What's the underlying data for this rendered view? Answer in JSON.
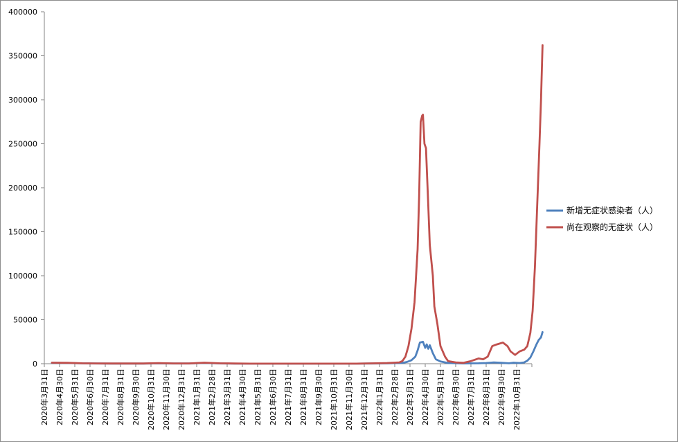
{
  "chart_data": {
    "type": "line",
    "title": "",
    "xlabel": "",
    "ylabel": "",
    "ylim": [
      0,
      400000
    ],
    "y_ticks": [
      0,
      50000,
      100000,
      150000,
      200000,
      250000,
      300000,
      350000,
      400000
    ],
    "x_tick_labels": [
      "2020年3月31日",
      "2020年4月30日",
      "2020年5月31日",
      "2020年6月30日",
      "2020年7月31日",
      "2020年8月31日",
      "2020年9月30日",
      "2020年10月31日",
      "2020年11月30日",
      "2020年12月31日",
      "2021年1月31日",
      "2021年2月28日",
      "2021年3月31日",
      "2021年4月30日",
      "2021年5月31日",
      "2021年6月30日",
      "2021年7月31日",
      "2021年8月31日",
      "2021年9月30日",
      "2021年10月31日",
      "2021年11月30日",
      "2021年12月31日",
      "2022年1月31日",
      "2022年2月28日",
      "2022年3月31日",
      "2022年4月30日",
      "2022年5月31日",
      "2022年6月30日",
      "2022年7月31日",
      "2022年8月31日",
      "2022年9月30日",
      "2022年10月31日"
    ],
    "legend_position": "right",
    "grid": false,
    "series": [
      {
        "name": "新增无症状感染者（人）",
        "color": "#4f81bd",
        "points": [
          [
            0,
            1000
          ],
          [
            1,
            800
          ],
          [
            2,
            400
          ],
          [
            3,
            200
          ],
          [
            4,
            150
          ],
          [
            5,
            150
          ],
          [
            6,
            150
          ],
          [
            7,
            400
          ],
          [
            8,
            200
          ],
          [
            9,
            200
          ],
          [
            10,
            900
          ],
          [
            11,
            300
          ],
          [
            12,
            100
          ],
          [
            13,
            50
          ],
          [
            14,
            50
          ],
          [
            15,
            50
          ],
          [
            16,
            50
          ],
          [
            17,
            50
          ],
          [
            18,
            50
          ],
          [
            19,
            50
          ],
          [
            20,
            50
          ],
          [
            21,
            200
          ],
          [
            22,
            400
          ],
          [
            22.8,
            800
          ],
          [
            23,
            1000
          ],
          [
            23.3,
            2000
          ],
          [
            23.6,
            4000
          ],
          [
            23.85,
            8000
          ],
          [
            24,
            15000
          ],
          [
            24.15,
            24000
          ],
          [
            24.35,
            25000
          ],
          [
            24.5,
            18000
          ],
          [
            24.6,
            22000
          ],
          [
            24.7,
            17000
          ],
          [
            24.8,
            21000
          ],
          [
            25,
            12000
          ],
          [
            25.2,
            5000
          ],
          [
            25.5,
            2500
          ],
          [
            26,
            800
          ],
          [
            27,
            300
          ],
          [
            28,
            500
          ],
          [
            28.5,
            800
          ],
          [
            29,
            1500
          ],
          [
            29.5,
            1000
          ],
          [
            30,
            500
          ],
          [
            30.3,
            1200
          ],
          [
            30.7,
            800
          ],
          [
            31,
            1500
          ],
          [
            31.2,
            3500
          ],
          [
            31.4,
            7000
          ],
          [
            31.6,
            14000
          ],
          [
            31.8,
            22000
          ],
          [
            31.95,
            27000
          ],
          [
            32.1,
            30000
          ],
          [
            32.2,
            36000
          ]
        ]
      },
      {
        "name": "尚在观察的无症状（人）",
        "color": "#c0504d",
        "points": [
          [
            0,
            1200
          ],
          [
            1,
            1000
          ],
          [
            2,
            500
          ],
          [
            3,
            300
          ],
          [
            4,
            200
          ],
          [
            5,
            200
          ],
          [
            6,
            200
          ],
          [
            7,
            700
          ],
          [
            8,
            300
          ],
          [
            9,
            300
          ],
          [
            10,
            1200
          ],
          [
            11,
            500
          ],
          [
            12,
            200
          ],
          [
            13,
            100
          ],
          [
            14,
            100
          ],
          [
            15,
            100
          ],
          [
            16,
            100
          ],
          [
            17,
            100
          ],
          [
            18,
            100
          ],
          [
            19,
            100
          ],
          [
            20,
            100
          ],
          [
            21,
            400
          ],
          [
            22,
            800
          ],
          [
            22.8,
            1500
          ],
          [
            23,
            3000
          ],
          [
            23.2,
            8000
          ],
          [
            23.4,
            20000
          ],
          [
            23.6,
            40000
          ],
          [
            23.8,
            70000
          ],
          [
            24,
            130000
          ],
          [
            24.1,
            190000
          ],
          [
            24.2,
            275000
          ],
          [
            24.3,
            282000
          ],
          [
            24.35,
            283000
          ],
          [
            24.45,
            250000
          ],
          [
            24.55,
            245000
          ],
          [
            24.7,
            180000
          ],
          [
            24.8,
            135000
          ],
          [
            25,
            100000
          ],
          [
            25.1,
            65000
          ],
          [
            25.3,
            45000
          ],
          [
            25.5,
            20000
          ],
          [
            25.8,
            8000
          ],
          [
            26,
            3000
          ],
          [
            26.5,
            1500
          ],
          [
            27,
            1000
          ],
          [
            27.5,
            3000
          ],
          [
            28,
            6000
          ],
          [
            28.3,
            5000
          ],
          [
            28.6,
            8000
          ],
          [
            28.9,
            20000
          ],
          [
            29.2,
            22000
          ],
          [
            29.6,
            24000
          ],
          [
            29.9,
            20000
          ],
          [
            30.1,
            14000
          ],
          [
            30.4,
            10000
          ],
          [
            30.7,
            14000
          ],
          [
            31,
            16000
          ],
          [
            31.2,
            20000
          ],
          [
            31.4,
            35000
          ],
          [
            31.55,
            60000
          ],
          [
            31.7,
            110000
          ],
          [
            31.85,
            180000
          ],
          [
            32,
            250000
          ],
          [
            32.1,
            300000
          ],
          [
            32.2,
            362000
          ]
        ]
      }
    ]
  }
}
